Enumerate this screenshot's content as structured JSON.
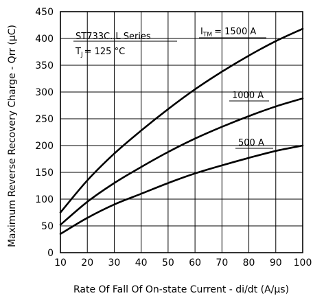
{
  "chart_data": {
    "type": "line",
    "xlabel": "Rate Of Fall Of On-state Current - di/dt (A/μs)",
    "ylabel": "Maximum Reverse Recovery Charge - Qrr (μC)",
    "xlim": [
      10,
      100
    ],
    "ylim": [
      0,
      450
    ],
    "xticks": [
      10,
      20,
      30,
      40,
      50,
      60,
      70,
      80,
      90,
      100
    ],
    "yticks": [
      0,
      50,
      100,
      150,
      200,
      250,
      300,
      350,
      400,
      450
    ],
    "grid": true,
    "series": [
      {
        "name": "I_TM = 1500 A",
        "x": [
          10,
          20,
          30,
          40,
          50,
          60,
          70,
          80,
          90,
          100
        ],
        "y": [
          75,
          135,
          185,
          228,
          268,
          305,
          338,
          368,
          395,
          418
        ]
      },
      {
        "name": "1000 A",
        "x": [
          10,
          20,
          30,
          40,
          50,
          60,
          70,
          80,
          90,
          100
        ],
        "y": [
          52,
          95,
          130,
          160,
          188,
          213,
          235,
          255,
          273,
          288
        ]
      },
      {
        "name": "500 A",
        "x": [
          10,
          20,
          30,
          40,
          50,
          60,
          70,
          80,
          90,
          100
        ],
        "y": [
          35,
          65,
          90,
          110,
          130,
          148,
          163,
          177,
          190,
          200
        ]
      }
    ],
    "annotations": {
      "device": "ST733C..L Series",
      "temperature": "T",
      "temperature_sub": "J",
      "temperature_value": "= 125 °C",
      "label_1500_prefix": "I",
      "label_1500_sub": "TM",
      "label_1500_value": "= 1500 A",
      "label_1000": "1000 A",
      "label_500": "500 A"
    }
  }
}
